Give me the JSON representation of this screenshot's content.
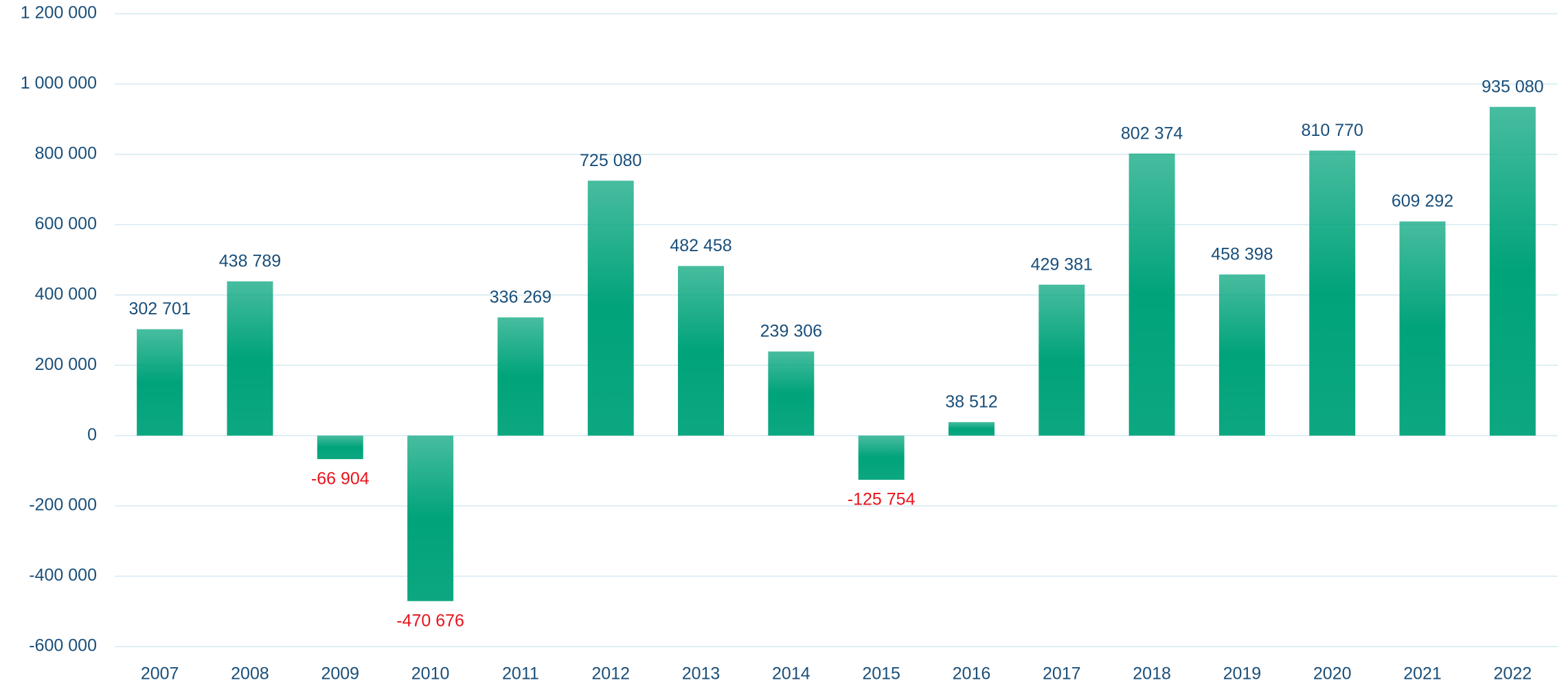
{
  "chart_data": {
    "type": "bar",
    "categories": [
      "2007",
      "2008",
      "2009",
      "2010",
      "2011",
      "2012",
      "2013",
      "2014",
      "2015",
      "2016",
      "2017",
      "2018",
      "2019",
      "2020",
      "2021",
      "2022"
    ],
    "values": [
      302701,
      438789,
      -66904,
      -470676,
      336269,
      725080,
      482458,
      239306,
      -125754,
      38512,
      429381,
      802374,
      458398,
      810770,
      609292,
      935080
    ],
    "value_labels": [
      "302 701",
      "438 789",
      "-66 904",
      "-470 676",
      "336 269",
      "725 080",
      "482 458",
      "239 306",
      "-125 754",
      "38 512",
      "429 381",
      "802 374",
      "458 398",
      "810 770",
      "609 292",
      "935 080"
    ],
    "color": "#00a37a",
    "label_color": "#1a4f7a",
    "negative_label_color": "#e8141c",
    "ylim": [
      -600000,
      1200000
    ],
    "yticks": [
      {
        "value": -600000,
        "label": "-600 000"
      },
      {
        "value": -400000,
        "label": "-400 000"
      },
      {
        "value": -200000,
        "label": "-200 000"
      },
      0,
      {
        "value": 200000,
        "label": "200 000"
      },
      {
        "value": 400000,
        "label": "400 000"
      },
      {
        "value": 600000,
        "label": "600 000"
      },
      {
        "value": 800000,
        "label": "800 000"
      },
      {
        "value": 1000000,
        "label": "1 000 000"
      },
      {
        "value": 1200000,
        "label": "1 200 000"
      }
    ],
    "grid": true
  }
}
